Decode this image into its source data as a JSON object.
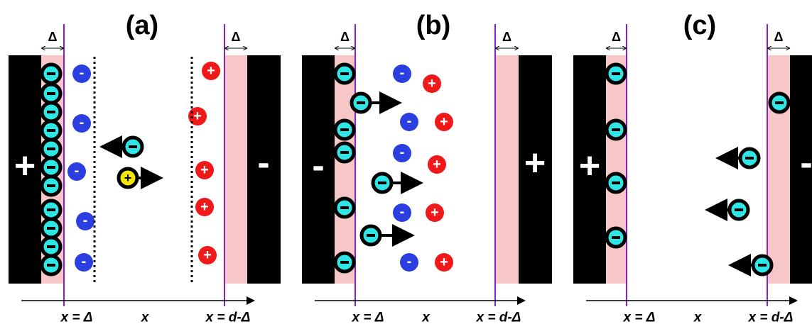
{
  "panels": [
    {
      "label": "(a)",
      "delta_left": "Δ",
      "delta_right": "Δ",
      "left_electrode": "+",
      "right_electrode": "-",
      "axis_labels": [
        "x = Δ",
        "x",
        "x = d-Δ"
      ]
    },
    {
      "label": "(b)",
      "delta_left": "Δ",
      "delta_right": "Δ",
      "left_electrode": "-",
      "right_electrode": "+",
      "axis_labels": [
        "x = Δ",
        "x",
        "x = d-Δ"
      ]
    },
    {
      "label": "(c)",
      "delta_left": "Δ",
      "delta_right": "Δ",
      "left_electrode": "+",
      "right_electrode": "-",
      "axis_labels": [
        "x = Δ",
        "x",
        "x = d-Δ"
      ]
    }
  ],
  "ion_signs": {
    "anion": "-",
    "cation": "+"
  }
}
